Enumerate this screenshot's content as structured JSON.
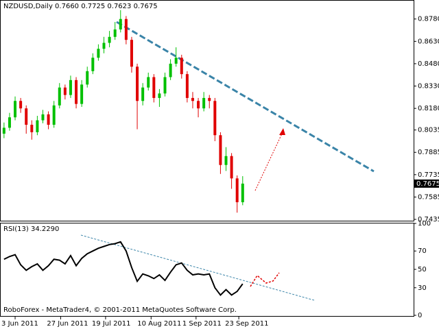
{
  "chart_data": [
    {
      "type": "candlestick",
      "title": "NZDUSD,Daily  0.7660 0.7725 0.7623 0.7675",
      "up_color": "#00c000",
      "down_color": "#e00000",
      "xlim": [
        -0.6,
        73.8
      ],
      "ylim": [
        0.7426,
        0.8903
      ],
      "yticks": [
        {
          "value": 0.878,
          "label": "0.8780"
        },
        {
          "value": 0.863,
          "label": "0.8630"
        },
        {
          "value": 0.848,
          "label": "0.8480"
        },
        {
          "value": 0.833,
          "label": "0.8330"
        },
        {
          "value": 0.818,
          "label": "0.8180"
        },
        {
          "value": 0.8035,
          "label": "0.8035"
        },
        {
          "value": 0.7885,
          "label": "0.7885"
        },
        {
          "value": 0.7735,
          "label": "0.7735"
        },
        {
          "value": 0.7585,
          "label": "0.7585"
        },
        {
          "value": 0.7435,
          "label": "0.7435"
        }
      ],
      "candles": {
        "open": [
          0.801,
          0.805,
          0.812,
          0.823,
          0.818,
          0.807,
          0.802,
          0.81,
          0.814,
          0.807,
          0.82,
          0.832,
          0.827,
          0.837,
          0.821,
          0.834,
          0.843,
          0.852,
          0.858,
          0.862,
          0.866,
          0.871,
          0.878,
          0.864,
          0.846,
          0.823,
          0.832,
          0.839,
          0.825,
          0.828,
          0.839,
          0.848,
          0.852,
          0.841,
          0.825,
          0.823,
          0.818,
          0.825,
          0.823,
          0.8,
          0.78,
          0.786,
          0.771,
          0.755
        ],
        "high": [
          0.8085,
          0.815,
          0.826,
          0.825,
          0.82,
          0.81,
          0.813,
          0.817,
          0.816,
          0.823,
          0.835,
          0.834,
          0.84,
          0.839,
          0.837,
          0.846,
          0.855,
          0.861,
          0.866,
          0.87,
          0.876,
          0.884,
          0.88,
          0.866,
          0.848,
          0.835,
          0.842,
          0.841,
          0.831,
          0.842,
          0.851,
          0.859,
          0.854,
          0.843,
          0.829,
          0.825,
          0.829,
          0.827,
          0.825,
          0.802,
          0.792,
          0.788,
          0.773,
          0.7725
        ],
        "low": [
          0.798,
          0.803,
          0.81,
          0.815,
          0.801,
          0.797,
          0.8,
          0.808,
          0.804,
          0.805,
          0.818,
          0.824,
          0.825,
          0.818,
          0.819,
          0.832,
          0.841,
          0.85,
          0.855,
          0.859,
          0.864,
          0.869,
          0.861,
          0.842,
          0.804,
          0.82,
          0.83,
          0.822,
          0.819,
          0.826,
          0.837,
          0.846,
          0.838,
          0.822,
          0.818,
          0.812,
          0.816,
          0.818,
          0.796,
          0.774,
          0.776,
          0.764,
          0.748,
          0.753
        ],
        "close": [
          0.805,
          0.812,
          0.823,
          0.818,
          0.807,
          0.802,
          0.81,
          0.814,
          0.807,
          0.82,
          0.832,
          0.827,
          0.837,
          0.821,
          0.834,
          0.843,
          0.852,
          0.858,
          0.862,
          0.866,
          0.871,
          0.878,
          0.864,
          0.846,
          0.823,
          0.832,
          0.839,
          0.825,
          0.828,
          0.839,
          0.848,
          0.852,
          0.841,
          0.825,
          0.823,
          0.818,
          0.825,
          0.823,
          0.8,
          0.78,
          0.786,
          0.771,
          0.755,
          0.7675
        ]
      }
    },
    {
      "type": "line",
      "title": "RSI(13) 34.2290",
      "color": "#000000",
      "annotation": "RoboForex - MetaTrader4, © 2001-2011 MetaQuotes Software Corp.",
      "xlim": [
        -0.6,
        73.8
      ],
      "ylim": [
        0,
        100
      ],
      "yticks": [
        100,
        70,
        50,
        30,
        0
      ],
      "xticks": [
        {
          "value": 2,
          "label": "3 Jun 2011"
        },
        {
          "value": 10.2,
          "label": "27 Jun 2011"
        },
        {
          "value": 18.3,
          "label": "19 Jul 2011"
        },
        {
          "value": 26.5,
          "label": "10 Aug 2011"
        },
        {
          "value": 34.6,
          "label": "1 Sep 2011"
        },
        {
          "value": 42.3,
          "label": "23 Sep 2011"
        }
      ],
      "values": [
        61,
        64,
        66,
        55,
        49,
        53,
        56,
        49,
        54,
        61,
        60,
        56,
        65,
        54,
        62,
        67,
        70,
        73,
        75,
        77,
        78,
        80,
        70,
        52,
        37,
        45,
        43,
        40,
        44,
        38,
        47,
        55,
        57,
        49,
        44,
        45,
        44,
        45,
        30,
        22,
        28,
        22,
        26,
        34.229
      ]
    }
  ]
}
